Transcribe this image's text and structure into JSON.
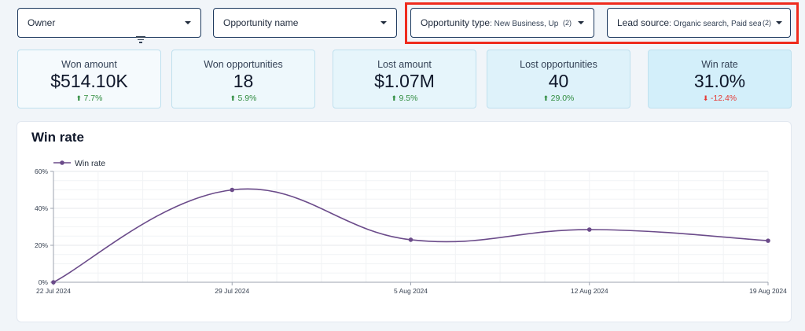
{
  "filters": {
    "owner": {
      "label": "Owner"
    },
    "opportunity_name": {
      "label": "Opportunity name"
    },
    "opportunity_type": {
      "label": "Opportunity type",
      "value": ": New Business, Upsell",
      "count": "(2)"
    },
    "lead_source": {
      "label": "Lead source",
      "value": ": Organic search, Paid search",
      "count": "(2)"
    }
  },
  "kpis": [
    {
      "label": "Won amount",
      "value": "$514.10K",
      "delta": "7.7%",
      "direction": "up",
      "bg": "#f5fafd"
    },
    {
      "label": "Won opportunities",
      "value": "18",
      "delta": "5.9%",
      "direction": "up",
      "bg": "#eef8fc"
    },
    {
      "label": "Lost amount",
      "value": "$1.07M",
      "delta": "9.5%",
      "direction": "up",
      "bg": "#e6f5fb"
    },
    {
      "label": "Lost opportunities",
      "value": "40",
      "delta": "29.0%",
      "direction": "up",
      "bg": "#def2fa"
    },
    {
      "label": "Win rate",
      "value": "31.0%",
      "delta": "-12.4%",
      "direction": "down",
      "bg": "#d3effa"
    }
  ],
  "chart_panel": {
    "title": "Win rate"
  },
  "chart_data": {
    "type": "line",
    "title": "Win rate",
    "x": [
      "22 Jul 2024",
      "29 Jul 2024",
      "5 Aug 2024",
      "12 Aug 2024",
      "19 Aug 2024"
    ],
    "series": [
      {
        "name": "Win rate",
        "values": [
          0,
          50,
          23,
          28.5,
          22.5
        ],
        "color": "#6b4b8a"
      }
    ],
    "yticks": [
      "0%",
      "20%",
      "40%",
      "60%"
    ],
    "ylim": [
      0,
      60
    ],
    "grid": true,
    "legend": "top-left",
    "xlabel": "",
    "ylabel": ""
  },
  "colors": {
    "accent": "#6b4b8a",
    "highlight": "#ef2b1d",
    "positive": "#2e8b3e",
    "negative": "#e53935"
  }
}
